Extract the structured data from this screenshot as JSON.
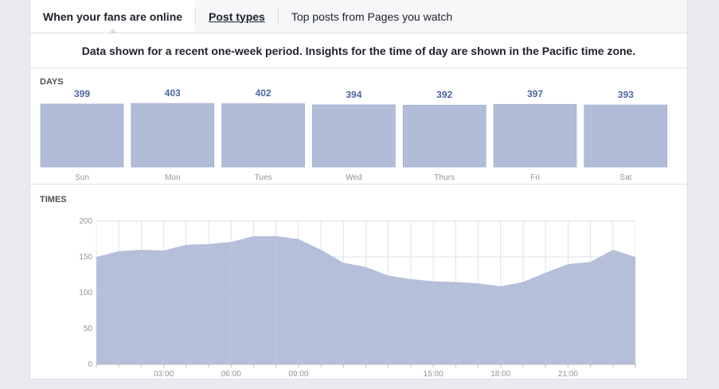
{
  "tabs": [
    {
      "label": "When your fans are online",
      "active": true
    },
    {
      "label": "Post types",
      "active": false
    },
    {
      "label": "Top posts from Pages you watch",
      "active": false
    }
  ],
  "notice": "Data shown for a recent one-week period. Insights for the time of day are shown in the Pacific time zone.",
  "days_label": "DAYS",
  "times_label": "TIMES",
  "colors": {
    "fill": "#b1bcd8",
    "stroke": "#9aa7ca",
    "value_text": "#4b67a1",
    "axis_text": "#90949c"
  },
  "chart_data": [
    {
      "type": "bar",
      "title": "DAYS",
      "categories": [
        "Sun",
        "Mon",
        "Tues",
        "Wed",
        "Thurs",
        "Fri",
        "Sat"
      ],
      "values": [
        399,
        403,
        402,
        394,
        392,
        397,
        393
      ],
      "value_labels": [
        "399",
        "403",
        "402",
        "394",
        "392",
        "397",
        "393"
      ]
    },
    {
      "type": "area",
      "title": "TIMES",
      "x": [
        0,
        1,
        2,
        3,
        4,
        5,
        6,
        7,
        8,
        9,
        10,
        11,
        12,
        13,
        14,
        15,
        16,
        17,
        18,
        19,
        20,
        21,
        22,
        23,
        24
      ],
      "values": [
        150,
        158,
        160,
        159,
        167,
        168,
        171,
        179,
        179,
        175,
        160,
        142,
        136,
        124,
        119,
        116,
        115,
        113,
        109,
        115,
        128,
        140,
        143,
        160,
        150
      ],
      "x_ticks": [
        {
          "x": 3,
          "label": "03:00"
        },
        {
          "x": 6,
          "label": "06:00"
        },
        {
          "x": 9,
          "label": "09:00"
        },
        {
          "x": 15,
          "label": "15:00"
        },
        {
          "x": 18,
          "label": "18:00"
        },
        {
          "x": 21,
          "label": "21:00"
        }
      ],
      "y_ticks": [
        0,
        50,
        100,
        150,
        200
      ],
      "ylim": [
        0,
        200
      ],
      "xlim": [
        0,
        24
      ],
      "grid": true
    }
  ]
}
